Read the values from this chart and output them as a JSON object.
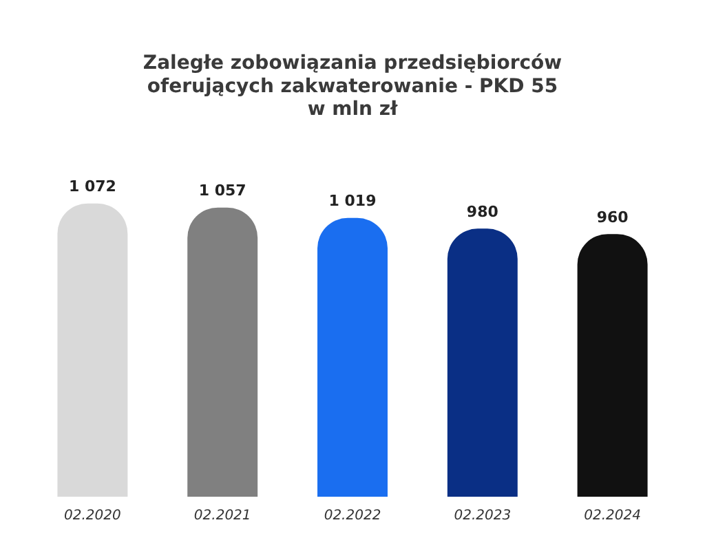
{
  "chart_data": {
    "type": "bar",
    "title": "Zaległe zobowiązania przedsiębiorców\noferujących zakwaterowanie - PKD 55\nw mln zł",
    "categories": [
      "02.2020",
      "02.2021",
      "02.2022",
      "02.2023",
      "02.2024"
    ],
    "values": [
      1072,
      1057,
      1019,
      980,
      960
    ],
    "colors": [
      "#d9d9d9",
      "#808080",
      "#1a6ef0",
      "#0a2f85",
      "#111111"
    ],
    "value_labels": [
      "1 072",
      "1 057",
      "1 019",
      "980",
      "960"
    ],
    "grid": false,
    "legend": false
  }
}
